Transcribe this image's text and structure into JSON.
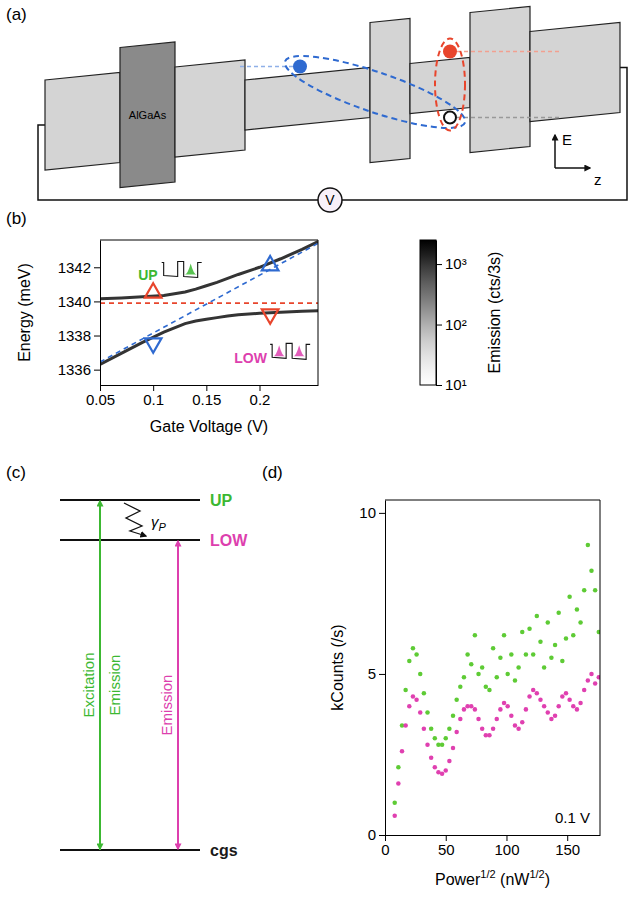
{
  "chart_data": [
    {
      "type": "diagram",
      "label": "(a)",
      "barrier": "AlGaAs",
      "energy_axis": "E",
      "position_axis": "z",
      "source": "V"
    },
    {
      "type": "line",
      "label": "(b)",
      "x_label": "Gate Voltage (V)",
      "y_label": "Energy (meV)",
      "xlim": [
        0.05,
        0.255
      ],
      "ylim": [
        1335.1,
        1343.6
      ],
      "xticks": [
        0.05,
        0.1,
        0.15,
        0.2
      ],
      "yticks": [
        1336,
        1338,
        1340,
        1342
      ],
      "annotations": [
        {
          "text": "UP",
          "color": "#3cb832"
        },
        {
          "text": "LOW",
          "color": "#dd3fae"
        }
      ],
      "series": [
        {
          "type": "line",
          "emission": 1000,
          "x": [
            0.05,
            0.07,
            0.09,
            0.11,
            0.13,
            0.14,
            0.15,
            0.16,
            0.17,
            0.18,
            0.2,
            0.22,
            0.24,
            0.255
          ],
          "values": [
            1340.15,
            1340.2,
            1340.27,
            1340.35,
            1340.55,
            1340.72,
            1340.92,
            1341.12,
            1341.35,
            1341.58,
            1342.0,
            1342.5,
            1343.05,
            1343.5
          ]
        },
        {
          "type": "line",
          "emission": 1000,
          "x": [
            0.05,
            0.07,
            0.09,
            0.11,
            0.13,
            0.14,
            0.15,
            0.16,
            0.17,
            0.18,
            0.2,
            0.22,
            0.24,
            0.255
          ],
          "values": [
            1336.3,
            1336.95,
            1337.6,
            1338.2,
            1338.7,
            1338.85,
            1338.95,
            1339.05,
            1339.15,
            1339.22,
            1339.3,
            1339.37,
            1339.42,
            1339.45
          ]
        },
        {
          "type": "line",
          "line_style": "dashed",
          "color": "#e8452c",
          "x": [
            0.05,
            0.255
          ],
          "values": [
            1339.9,
            1339.9
          ]
        },
        {
          "type": "line",
          "line_style": "dashed",
          "color": "#2f6ad0",
          "x": [
            0.05,
            0.255
          ],
          "values": [
            1336.45,
            1343.4
          ]
        },
        {
          "type": "scatter",
          "marker": "triangle-up",
          "color": "#e8452c",
          "x": [
            0.1
          ],
          "values": [
            1340.5
          ]
        },
        {
          "type": "scatter",
          "marker": "triangle-down",
          "color": "#2f6ad0",
          "x": [
            0.1
          ],
          "values": [
            1337.55
          ]
        },
        {
          "type": "scatter",
          "marker": "triangle-up",
          "color": "#2f6ad0",
          "x": [
            0.21
          ],
          "values": [
            1342.1
          ]
        },
        {
          "type": "scatter",
          "marker": "triangle-down",
          "color": "#e8452c",
          "x": [
            0.21
          ],
          "values": [
            1339.25
          ]
        }
      ],
      "colorbar": {
        "label": "Emission (cts/3s)",
        "log": true,
        "range": [
          10,
          2500
        ],
        "ticks": [
          {
            "value": 10,
            "label": "10¹"
          },
          {
            "value": 100,
            "label": "10²"
          },
          {
            "value": 1000,
            "label": "10³"
          }
        ]
      }
    },
    {
      "type": "diagram",
      "label": "(c)",
      "levels": [
        {
          "text": "UP",
          "color": "#3cb832"
        },
        {
          "text": "LOW",
          "color": "#dd3fae"
        },
        {
          "text": "cgs",
          "color": "#1a1a1a"
        }
      ],
      "arrows": [
        {
          "label": "Excitation",
          "color": "#3cb832"
        },
        {
          "label": "Emission",
          "color": "#3cb832"
        },
        {
          "label": "Emission",
          "color": "#dd3fae"
        }
      ],
      "relaxation": [
        "γ",
        "P"
      ]
    },
    {
      "type": "scatter",
      "label": "(d)",
      "x_label": [
        "Power",
        "1/2",
        " (nW",
        "1/2",
        ")"
      ],
      "y_label": "kCounts (/s)",
      "annotation": "0.1 V",
      "marker": "circle",
      "xlim": [
        0,
        177
      ],
      "ylim": [
        0,
        10.4
      ],
      "xticks": [
        0,
        50,
        100,
        150
      ],
      "yticks": [
        0,
        5,
        10
      ],
      "x": [
        8,
        11,
        14,
        17,
        20,
        23,
        26,
        29,
        32,
        35,
        38,
        41,
        44,
        47,
        50,
        53,
        56,
        59,
        62,
        65,
        68,
        71,
        74,
        77,
        80,
        83,
        86,
        89,
        92,
        95,
        98,
        101,
        104,
        107,
        110,
        113,
        116,
        119,
        122,
        125,
        128,
        131,
        134,
        137,
        140,
        143,
        146,
        149,
        152,
        155,
        158,
        161,
        164,
        167,
        170,
        173,
        176
      ],
      "series": [
        {
          "color": "#5ecb35",
          "values": [
            1.0,
            2.1,
            3.4,
            4.5,
            5.4,
            5.8,
            5.6,
            5.0,
            4.4,
            3.8,
            3.3,
            3.0,
            2.8,
            2.8,
            3.0,
            3.3,
            3.7,
            4.2,
            4.6,
            4.9,
            5.6,
            5.3,
            6.2,
            5.0,
            5.2,
            4.6,
            4.5,
            5.8,
            4.9,
            5.5,
            6.2,
            5.0,
            5.6,
            4.8,
            5.2,
            6.3,
            5.6,
            6.4,
            5.6,
            6.8,
            6.0,
            5.2,
            6.6,
            5.5,
            5.9,
            6.9,
            5.4,
            6.1,
            7.4,
            6.2,
            7.0,
            6.6,
            7.6,
            9.0,
            8.2,
            7.6,
            6.3
          ]
        },
        {
          "color": "#e040b0",
          "values": [
            0.6,
            1.6,
            2.6,
            3.4,
            4.0,
            4.3,
            4.2,
            3.8,
            3.3,
            2.8,
            2.4,
            2.1,
            1.95,
            1.9,
            2.0,
            2.3,
            2.7,
            3.2,
            3.6,
            3.9,
            4.0,
            4.0,
            3.9,
            3.6,
            3.3,
            3.1,
            3.1,
            3.3,
            3.6,
            3.9,
            4.1,
            4.0,
            3.7,
            3.4,
            3.3,
            3.5,
            3.9,
            4.3,
            4.5,
            4.4,
            4.2,
            4.0,
            3.8,
            3.6,
            3.7,
            4.0,
            4.3,
            4.4,
            4.2,
            4.0,
            3.9,
            4.1,
            4.5,
            4.8,
            5.0,
            4.7,
            4.9
          ]
        }
      ]
    }
  ]
}
